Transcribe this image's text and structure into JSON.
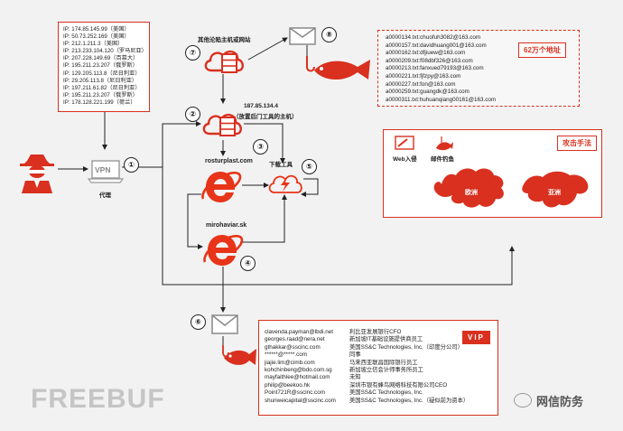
{
  "ip_list": [
    "IP: 174.85.145.99（美国）",
    "IP: 50.73.252.169（美国）",
    "IP: 212.1.211.3（美国）",
    "IP: 213.233.104.120（罗马尼亚）",
    "IP: 207.228.149.69（百慕大）",
    "IP: 195.211.23.207（俄罗斯）",
    "IP: 129.205.113.8（尼日利亚）",
    "IP: 29.205.113.8（尼日利亚）",
    "IP: 197.211.61.82（尼日利亚）",
    "IP: 195.211.23.207（俄罗斯）",
    "IP: 178.128.221.199（荷兰）"
  ],
  "proxy": {
    "vpn_label": "VPN",
    "label": "代理"
  },
  "nodes": {
    "other_hosts": "其他沦陷主机或网站",
    "c2_ip": "187.85.134.4",
    "c2_desc": "（放置后门工具的主机）",
    "site1": "rosturplast.com",
    "site2": "mirohaviar.sk",
    "download_tool": "下载工具"
  },
  "steps": [
    "①",
    "②",
    "③",
    "④",
    "⑤",
    "⑥",
    "⑦",
    "⑧"
  ],
  "email_targets": {
    "list": [
      "a0000134.txt:chuofuh3082@163.com",
      "a0000157.txt:davidhuang001@163.com",
      "a0000162.txt:dfjiuew@163.com",
      "a0000209.txt:f08dbf326@163.com",
      "a0000213.txt:fanxued79193@163.com",
      "a0000221.txt:fjfzpy@163.com",
      "a0000227.txt:fon@163.com",
      "a0000259.txt:guangdk@163.com",
      "a0000311.txt:huhuanqiang00161@163.com"
    ],
    "count_label": "62万个地址"
  },
  "attack_methods": {
    "title": "攻击手法",
    "web_label": "Web入侵",
    "phish_label": "邮件钓鱼",
    "region_europe": "欧洲",
    "region_asia": "亚洲"
  },
  "vip": {
    "badge": "VIP",
    "rows": [
      {
        "email": "clavenda.payman@lbdi.net",
        "desc": "利比亚发展银行CFO"
      },
      {
        "email": "georges.raad@nera.net",
        "desc": "新加坡IT基础设施提供商员工"
      },
      {
        "email": "gthakkar@sscinc.com",
        "desc": "美国SS&C Technologies, Inc.（印度分公司）"
      },
      {
        "email": "******@*****.com",
        "desc": "同事"
      },
      {
        "email": "jiajie.lim@cimb.com",
        "desc": "马来西亚联昌国际银行员工"
      },
      {
        "email": "kohchinbeng@bdo.com.sg",
        "desc": "新加坡立信会计师事务所员工"
      },
      {
        "email": "mayfaithlee@hotmail.com",
        "desc": "未知"
      },
      {
        "email": "philip@beekoo.hk",
        "desc": "深圳市银有蜂鸟网络科技有限公司CEO"
      },
      {
        "email": "Point721R@sscinc.com",
        "desc": "美国SS&C Technologies, Inc."
      },
      {
        "email": "shunweicapital@sscinc.com",
        "desc": "美国SS&C Technologies, Inc.（疑似前为资本）"
      }
    ]
  },
  "watermark": {
    "left": "FREEBUF",
    "right": "网信防务"
  },
  "colors": {
    "accent": "#d9301f",
    "ie": "#e83418",
    "line": "#222222"
  }
}
